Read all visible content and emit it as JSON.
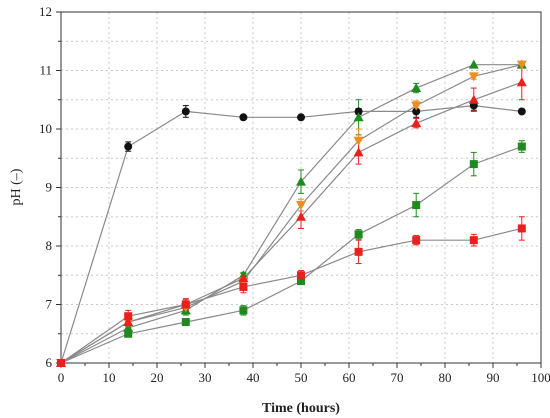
{
  "chart_data": {
    "type": "line",
    "title": "",
    "xlabel": "Time (hours)",
    "ylabel": "pH (–)",
    "xlim": [
      0,
      100
    ],
    "ylim": [
      6,
      12
    ],
    "xticks": [
      0,
      10,
      20,
      30,
      40,
      50,
      60,
      70,
      80,
      90,
      100
    ],
    "yticks": [
      6,
      7,
      8,
      9,
      10,
      11,
      12
    ],
    "grid": true,
    "legend": "none",
    "line_color": "#8a8a8a",
    "series": [
      {
        "marker": "circle",
        "color": "#111111",
        "x": [
          0,
          14,
          26,
          38,
          50,
          62,
          74,
          86,
          96
        ],
        "y": [
          6.0,
          9.7,
          10.3,
          10.2,
          10.2,
          10.3,
          10.3,
          10.4,
          10.3
        ],
        "err": [
          0,
          0.08,
          0.1,
          0,
          0,
          0.05,
          0.1,
          0.08,
          0
        ]
      },
      {
        "marker": "triangle-up",
        "color": "#1f8a1f",
        "x": [
          0,
          14,
          26,
          38,
          50,
          62,
          74,
          86,
          96
        ],
        "y": [
          6.0,
          6.6,
          6.9,
          7.5,
          9.1,
          10.2,
          10.7,
          11.1,
          11.1
        ],
        "err": [
          0,
          0.05,
          0.08,
          0.05,
          0.2,
          0.3,
          0.08,
          0,
          0
        ]
      },
      {
        "marker": "triangle-down",
        "color": "#f08c1e",
        "x": [
          0,
          14,
          26,
          38,
          50,
          62,
          74,
          86,
          96
        ],
        "y": [
          6.0,
          6.7,
          6.95,
          7.4,
          8.7,
          9.8,
          10.4,
          10.9,
          11.1
        ],
        "err": [
          0,
          0.05,
          0.05,
          0.05,
          0.1,
          0.2,
          0.08,
          0.05,
          0
        ]
      },
      {
        "marker": "triangle-up",
        "color": "#e8201e",
        "x": [
          0,
          14,
          26,
          38,
          50,
          62,
          74,
          86,
          96
        ],
        "y": [
          6.0,
          6.7,
          7.0,
          7.45,
          8.5,
          9.6,
          10.1,
          10.5,
          10.8
        ],
        "err": [
          0,
          0.08,
          0.08,
          0.08,
          0.2,
          0.2,
          0.08,
          0.2,
          0.3
        ]
      },
      {
        "marker": "square",
        "color": "#1f8a1f",
        "x": [
          0,
          14,
          26,
          38,
          50,
          62,
          74,
          86,
          96
        ],
        "y": [
          6.0,
          6.5,
          6.7,
          6.9,
          7.4,
          8.2,
          8.7,
          9.4,
          9.7
        ],
        "err": [
          0,
          0.05,
          0.05,
          0.08,
          0.05,
          0.08,
          0.2,
          0.2,
          0.1
        ]
      },
      {
        "marker": "square",
        "color": "#e8201e",
        "x": [
          0,
          14,
          26,
          38,
          50,
          62,
          74,
          86,
          96
        ],
        "y": [
          6.0,
          6.8,
          7.0,
          7.3,
          7.5,
          7.9,
          8.1,
          8.1,
          8.3
        ],
        "err": [
          0,
          0.1,
          0.1,
          0.1,
          0.08,
          0.2,
          0.08,
          0.1,
          0.2
        ]
      }
    ]
  }
}
